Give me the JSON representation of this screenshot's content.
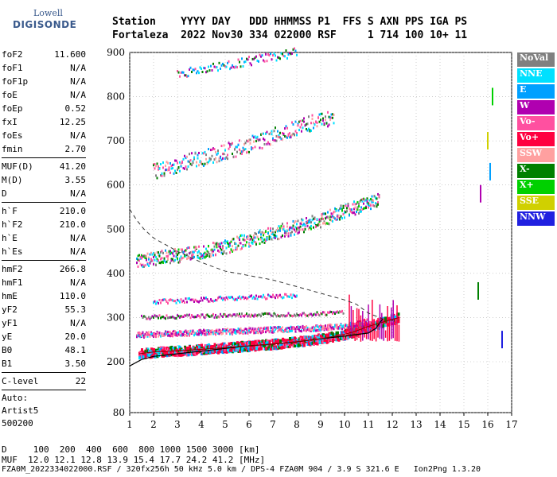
{
  "logo": {
    "line1": "Lowell",
    "line2": "DIGISONDE"
  },
  "header": {
    "line1": "Station    YYYY DAY   DDD HHMMSS P1  FFS S AXN PPS IGA PS",
    "line2": "Fortaleza  2022 Nov30 334 022000 RSF     1 714 100 10+ 11"
  },
  "params": {
    "groups": [
      [
        {
          "k": "foF2",
          "v": "11.600"
        },
        {
          "k": "foF1",
          "v": "N/A"
        },
        {
          "k": "foF1p",
          "v": "N/A"
        },
        {
          "k": "foE",
          "v": "N/A"
        },
        {
          "k": "foEp",
          "v": "0.52"
        },
        {
          "k": "fxI",
          "v": "12.25"
        },
        {
          "k": "foEs",
          "v": "N/A"
        },
        {
          "k": "fmin",
          "v": "2.70"
        }
      ],
      [
        {
          "k": "MUF(D)",
          "v": "41.20"
        },
        {
          "k": "M(D)",
          "v": "3.55"
        },
        {
          "k": "D",
          "v": "N/A"
        }
      ],
      [
        {
          "k": "h`F",
          "v": "210.0"
        },
        {
          "k": "h`F2",
          "v": "210.0"
        },
        {
          "k": "h`E",
          "v": "N/A"
        },
        {
          "k": "h`Es",
          "v": "N/A"
        }
      ],
      [
        {
          "k": "hmF2",
          "v": "266.8"
        },
        {
          "k": "hmF1",
          "v": "N/A"
        },
        {
          "k": "hmE",
          "v": "110.0"
        },
        {
          "k": "yF2",
          "v": "55.3"
        },
        {
          "k": "yF1",
          "v": "N/A"
        },
        {
          "k": "yE",
          "v": "20.0"
        },
        {
          "k": "B0",
          "v": "48.1"
        },
        {
          "k": "B1",
          "v": "3.50"
        }
      ],
      [
        {
          "k": "C-level",
          "v": "22"
        }
      ]
    ],
    "auto": [
      "Auto:",
      "Artist5",
      "500200"
    ]
  },
  "legend": [
    {
      "label": "NoVal",
      "color": "#808080"
    },
    {
      "label": "NNE",
      "color": "#00e0ff"
    },
    {
      "label": "E",
      "color": "#00a0ff"
    },
    {
      "label": "W",
      "color": "#b000b0"
    },
    {
      "label": "Vo-",
      "color": "#ff50a0"
    },
    {
      "label": "Vo+",
      "color": "#ff0040"
    },
    {
      "label": "SSW",
      "color": "#ffa0a0"
    },
    {
      "label": "X-",
      "color": "#008000"
    },
    {
      "label": "X+",
      "color": "#00d000"
    },
    {
      "label": "SSE",
      "color": "#d0d000"
    },
    {
      "label": "NNW",
      "color": "#2020e0"
    }
  ],
  "footer": {
    "line1": "D     100  200  400  600  800 1000 1500 3000 [km]",
    "line2": "MUF  12.0 12.1 12.8 13.9 15.4 17.7 24.2 41.2 [MHz]",
    "line3": "FZA0M_2022334022000.RSF / 320fx256h 50 kHz 5.0 km / DPS-4 FZA0M 904 / 3.9 S 321.6 E   Ion2Png 1.3.20"
  },
  "chart_data": {
    "type": "scatter",
    "xlabel": "",
    "ylabel": "",
    "xlim": [
      1,
      17
    ],
    "ylim": [
      80,
      900
    ],
    "xticks": [
      1,
      2,
      3,
      4,
      5,
      6,
      7,
      8,
      9,
      10,
      11,
      12,
      13,
      14,
      15,
      16,
      17
    ],
    "yticks": [
      80,
      200,
      300,
      400,
      500,
      600,
      700,
      800,
      900
    ],
    "grid": true,
    "traces": [
      {
        "name": "F2 1st hop",
        "x": [
          1.4,
          2,
          3,
          4,
          5,
          6,
          7,
          8,
          9,
          10,
          10.5,
          11,
          11.5,
          12,
          12.3
        ],
        "y": [
          218,
          222,
          225,
          228,
          232,
          236,
          240,
          245,
          252,
          262,
          270,
          280,
          288,
          296,
          300
        ]
      },
      {
        "name": "Es / W band",
        "x": [
          1.3,
          2,
          3,
          4,
          5,
          6,
          7,
          8,
          9,
          10,
          11
        ],
        "y": [
          260,
          262,
          264,
          266,
          268,
          270,
          272,
          274,
          276,
          280,
          290
        ]
      },
      {
        "name": "2nd hop",
        "x": [
          1.3,
          2,
          3,
          4,
          5,
          6,
          7,
          8,
          9,
          10,
          10.8,
          11.5
        ],
        "y": [
          425,
          432,
          440,
          450,
          460,
          475,
          490,
          505,
          520,
          540,
          555,
          565
        ]
      },
      {
        "name": "3rd hop",
        "x": [
          2,
          3,
          4,
          5,
          6,
          7,
          8,
          9,
          9.6
        ],
        "y": [
          630,
          645,
          660,
          675,
          690,
          710,
          730,
          745,
          755
        ]
      },
      {
        "name": "4th hop",
        "x": [
          3,
          4,
          5,
          6,
          7,
          8
        ],
        "y": [
          850,
          860,
          870,
          880,
          890,
          900
        ]
      },
      {
        "name": "Upper band 1st",
        "x": [
          1.5,
          3,
          5,
          7,
          9,
          10
        ],
        "y": [
          300,
          302,
          304,
          306,
          308,
          312
        ]
      },
      {
        "name": "Upper band 2nd",
        "x": [
          2,
          4,
          6,
          8
        ],
        "y": [
          335,
          340,
          345,
          350
        ]
      }
    ],
    "profile": {
      "x": [
        1,
        1.5,
        2,
        3,
        4,
        5,
        6,
        7,
        8,
        9,
        10,
        11,
        11.3,
        11.6
      ],
      "y": [
        190,
        205,
        212,
        218,
        224,
        230,
        236,
        240,
        245,
        252,
        258,
        265,
        275,
        297
      ]
    },
    "muf_curve": {
      "x": [
        1,
        1.3,
        1.6,
        2,
        3,
        4,
        5,
        6,
        7,
        8,
        9,
        10,
        10.5,
        11,
        11.6
      ],
      "y": [
        545,
        520,
        500,
        480,
        450,
        425,
        405,
        395,
        385,
        370,
        355,
        340,
        330,
        310,
        297
      ]
    },
    "vertical_points": {
      "x": [
        15.6,
        15.7,
        16,
        16.1,
        16.2,
        16.6
      ],
      "y": [
        380,
        600,
        720,
        650,
        820,
        270
      ]
    }
  }
}
